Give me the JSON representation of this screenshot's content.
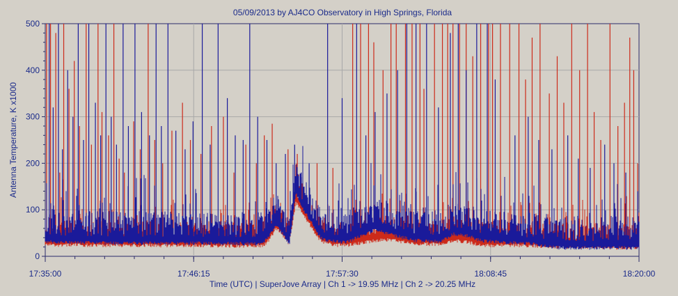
{
  "chart_data": {
    "type": "line",
    "title": "05/09/2013  by  AJ4CO Observatory  in  High Springs, Florida",
    "xlabel": "Time (UTC)  |  SuperJove Array  |  Ch 1 -> 19.95 MHz  |  Ch 2 -> 20.25 MHz",
    "ylabel": "Antenna Temperature, K x1000",
    "x_tick_labels": [
      "17:35:00",
      "17:46:15",
      "17:57:30",
      "18:08:45",
      "18:20:00"
    ],
    "x_range_minutes": [
      0,
      45
    ],
    "y_ticks": [
      0,
      100,
      200,
      300,
      400,
      500
    ],
    "ylim": [
      0,
      500
    ],
    "grid": true,
    "series": [
      {
        "name": "Ch 1 -> 19.95 MHz",
        "color": "#cc2a1a",
        "baseline": [
          [
            0,
            38
          ],
          [
            3,
            38
          ],
          [
            6,
            37
          ],
          [
            9,
            37
          ],
          [
            12,
            37
          ],
          [
            15,
            36
          ],
          [
            16.5,
            37
          ],
          [
            17,
            50
          ],
          [
            17.5,
            75
          ],
          [
            18,
            60
          ],
          [
            18.5,
            40
          ],
          [
            19,
            130
          ],
          [
            19.5,
            105
          ],
          [
            20,
            85
          ],
          [
            20.5,
            60
          ],
          [
            21,
            45
          ],
          [
            22,
            38
          ],
          [
            23,
            38
          ],
          [
            24,
            42
          ],
          [
            25,
            48
          ],
          [
            26,
            50
          ],
          [
            27,
            45
          ],
          [
            28,
            40
          ],
          [
            30,
            40
          ],
          [
            31,
            48
          ],
          [
            32,
            44
          ],
          [
            33,
            38
          ],
          [
            34,
            37
          ],
          [
            35,
            38
          ],
          [
            36,
            37
          ],
          [
            37,
            36
          ],
          [
            38,
            35
          ],
          [
            39,
            34
          ],
          [
            41,
            33
          ],
          [
            43,
            32
          ],
          [
            45,
            32
          ]
        ],
        "spikes": [
          [
            0.1,
            500
          ],
          [
            0.4,
            500
          ],
          [
            0.8,
            480
          ],
          [
            1.1,
            180
          ],
          [
            1.4,
            500
          ],
          [
            1.8,
            360
          ],
          [
            2.2,
            420
          ],
          [
            2.6,
            280
          ],
          [
            3.1,
            500
          ],
          [
            3.5,
            240
          ],
          [
            4.0,
            500
          ],
          [
            4.3,
            310
          ],
          [
            4.8,
            260
          ],
          [
            5.2,
            500
          ],
          [
            5.6,
            210
          ],
          [
            6.0,
            180
          ],
          [
            6.7,
            290
          ],
          [
            7.2,
            230
          ],
          [
            7.8,
            500
          ],
          [
            8.3,
            250
          ],
          [
            8.9,
            200
          ],
          [
            9.6,
            270
          ],
          [
            10.4,
            330
          ],
          [
            11.0,
            250
          ],
          [
            11.8,
            220
          ],
          [
            12.6,
            280
          ],
          [
            13.5,
            300
          ],
          [
            14.3,
            180
          ],
          [
            15.2,
            240
          ],
          [
            16.0,
            200
          ],
          [
            16.6,
            260
          ],
          [
            17.2,
            285
          ],
          [
            18.4,
            230
          ],
          [
            19.1,
            220
          ],
          [
            20.6,
            200
          ],
          [
            21.8,
            190
          ],
          [
            23.3,
            500
          ],
          [
            23.9,
            500
          ],
          [
            24.5,
            500
          ],
          [
            24.9,
            460
          ],
          [
            25.6,
            400
          ],
          [
            26.2,
            500
          ],
          [
            26.6,
            500
          ],
          [
            27.3,
            500
          ],
          [
            27.8,
            500
          ],
          [
            28.4,
            500
          ],
          [
            28.7,
            360
          ],
          [
            29.5,
            500
          ],
          [
            30.1,
            500
          ],
          [
            30.5,
            500
          ],
          [
            30.9,
            500
          ],
          [
            31.4,
            500
          ],
          [
            31.9,
            500
          ],
          [
            32.4,
            430
          ],
          [
            33.0,
            500
          ],
          [
            33.6,
            500
          ],
          [
            33.9,
            500
          ],
          [
            34.5,
            500
          ],
          [
            35.2,
            500
          ],
          [
            35.9,
            500
          ],
          [
            36.4,
            380
          ],
          [
            36.9,
            470
          ],
          [
            37.5,
            500
          ],
          [
            38.2,
            350
          ],
          [
            38.8,
            430
          ],
          [
            39.3,
            330
          ],
          [
            39.9,
            500
          ],
          [
            40.5,
            400
          ],
          [
            41.1,
            500
          ],
          [
            41.6,
            310
          ],
          [
            42.1,
            250
          ],
          [
            42.8,
            500
          ],
          [
            43.4,
            280
          ],
          [
            43.9,
            330
          ],
          [
            44.3,
            470
          ],
          [
            44.6,
            400
          ],
          [
            44.9,
            200
          ]
        ]
      },
      {
        "name": "Ch 2 -> 20.25 MHz",
        "color": "#1a1a9a",
        "baseline": [
          [
            0,
            45
          ],
          [
            2,
            44
          ],
          [
            4,
            43
          ],
          [
            6,
            42
          ],
          [
            8,
            42
          ],
          [
            10,
            42
          ],
          [
            12,
            42
          ],
          [
            14,
            42
          ],
          [
            16,
            40
          ],
          [
            16.5,
            42
          ],
          [
            17,
            58
          ],
          [
            17.5,
            80
          ],
          [
            18,
            62
          ],
          [
            18.5,
            40
          ],
          [
            19,
            150
          ],
          [
            19.5,
            118
          ],
          [
            20,
            95
          ],
          [
            20.5,
            70
          ],
          [
            21,
            50
          ],
          [
            22,
            45
          ],
          [
            23,
            45
          ],
          [
            24,
            60
          ],
          [
            25,
            70
          ],
          [
            26,
            62
          ],
          [
            27,
            55
          ],
          [
            28,
            48
          ],
          [
            30,
            46
          ],
          [
            31,
            62
          ],
          [
            32,
            58
          ],
          [
            33,
            48
          ],
          [
            34,
            45
          ],
          [
            35,
            44
          ],
          [
            36,
            42
          ],
          [
            37,
            40
          ],
          [
            38,
            36
          ],
          [
            39,
            32
          ],
          [
            40,
            32
          ],
          [
            42,
            32
          ],
          [
            45,
            32
          ]
        ],
        "spikes": [
          [
            0.3,
            500
          ],
          [
            0.6,
            320
          ],
          [
            1.0,
            500
          ],
          [
            1.3,
            230
          ],
          [
            1.7,
            400
          ],
          [
            2.1,
            300
          ],
          [
            2.5,
            500
          ],
          [
            2.9,
            250
          ],
          [
            3.3,
            500
          ],
          [
            3.8,
            330
          ],
          [
            4.2,
            260
          ],
          [
            4.6,
            500
          ],
          [
            5.0,
            300
          ],
          [
            5.4,
            240
          ],
          [
            5.9,
            500
          ],
          [
            6.3,
            280
          ],
          [
            6.8,
            500
          ],
          [
            7.3,
            310
          ],
          [
            7.9,
            260
          ],
          [
            8.4,
            500
          ],
          [
            8.8,
            280
          ],
          [
            9.3,
            500
          ],
          [
            9.9,
            270
          ],
          [
            10.6,
            230
          ],
          [
            11.2,
            290
          ],
          [
            11.9,
            500
          ],
          [
            12.5,
            240
          ],
          [
            13.1,
            500
          ],
          [
            13.8,
            340
          ],
          [
            14.4,
            260
          ],
          [
            15.0,
            250
          ],
          [
            15.5,
            500
          ],
          [
            16.1,
            300
          ],
          [
            16.8,
            250
          ],
          [
            17.5,
            200
          ],
          [
            18.2,
            220
          ],
          [
            18.9,
            240
          ],
          [
            19.4,
            180
          ],
          [
            20.0,
            200
          ],
          [
            21.4,
            500
          ],
          [
            22.5,
            340
          ],
          [
            23.6,
            500
          ],
          [
            24.3,
            260
          ],
          [
            25.0,
            310
          ],
          [
            25.9,
            350
          ],
          [
            26.7,
            400
          ],
          [
            27.4,
            500
          ],
          [
            28.1,
            500
          ],
          [
            28.9,
            500
          ],
          [
            29.8,
            320
          ],
          [
            30.7,
            480
          ],
          [
            31.3,
            500
          ],
          [
            31.9,
            400
          ],
          [
            32.7,
            500
          ],
          [
            33.5,
            500
          ],
          [
            34.1,
            380
          ],
          [
            35.6,
            260
          ],
          [
            36.6,
            300
          ],
          [
            37.4,
            250
          ],
          [
            38.4,
            230
          ],
          [
            39.6,
            260
          ],
          [
            40.4,
            210
          ],
          [
            41.3,
            190
          ],
          [
            42.4,
            240
          ],
          [
            43.1,
            200
          ],
          [
            44.0,
            180
          ],
          [
            44.9,
            140
          ]
        ]
      }
    ]
  }
}
